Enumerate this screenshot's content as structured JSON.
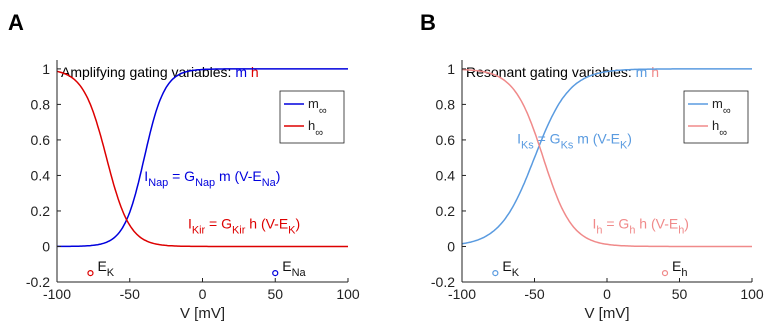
{
  "chart_data": [
    {
      "type": "line",
      "panel_label": "A",
      "title_prefix": "Amplifying gating variables:",
      "title_m": "m",
      "title_h": "h",
      "xlabel": "V  [mV]",
      "xlim": [
        -100,
        100
      ],
      "ylim": [
        -0.2,
        1.05
      ],
      "xticks": [
        -100,
        -50,
        0,
        50,
        100
      ],
      "xtick_labels": [
        "-100",
        "-50",
        "0",
        "50",
        "100"
      ],
      "yticks": [
        -0.2,
        0,
        0.2,
        0.4,
        0.6,
        0.8,
        1
      ],
      "ytick_labels": [
        "-0.2",
        "0",
        "0.2",
        "0.4",
        "0.6",
        "0.8",
        "1"
      ],
      "legend": {
        "location": "top-right",
        "entries": [
          {
            "base": "m",
            "sub": "∞",
            "color": "#0000dd"
          },
          {
            "base": "h",
            "sub": "∞",
            "color": "#dd0000"
          }
        ]
      },
      "series": [
        {
          "key": "m",
          "color": "#0000dd",
          "v_half": -40,
          "slope": 7,
          "kind": "activation"
        },
        {
          "key": "h",
          "color": "#dd0000",
          "v_half": -66,
          "slope": 8,
          "kind": "inactivation"
        }
      ],
      "annotations": [
        {
          "parts": [
            "I",
            "Nap",
            " = G",
            "Nap",
            " m (V-E",
            "Na",
            ")"
          ],
          "color": "#0000dd",
          "x": -40,
          "y": 0.37
        },
        {
          "parts": [
            "I",
            "Kir",
            " = G",
            "Kir",
            " h (V-E",
            "K",
            ")"
          ],
          "color": "#dd0000",
          "x": -10,
          "y": 0.1
        }
      ],
      "markers": [
        {
          "name": "E",
          "sub": "K",
          "x": -77,
          "y": -0.15,
          "color": "#dd0000"
        },
        {
          "name": "E",
          "sub": "Na",
          "x": 50,
          "y": -0.15,
          "color": "#0000dd"
        }
      ]
    },
    {
      "type": "line",
      "panel_label": "B",
      "title_prefix": "Resonant gating variables:",
      "title_m": "m",
      "title_h": "h",
      "xlabel": "V  [mV]",
      "xlim": [
        -100,
        100
      ],
      "ylim": [
        -0.2,
        1.05
      ],
      "xticks": [
        -100,
        -50,
        0,
        50,
        100
      ],
      "xtick_labels": [
        "-100",
        "-50",
        "0",
        "50",
        "100"
      ],
      "yticks": [
        -0.2,
        0,
        0.2,
        0.4,
        0.6,
        0.8,
        1
      ],
      "ytick_labels": [
        "-0.2",
        "0",
        "0.2",
        "0.4",
        "0.6",
        "0.8",
        "1"
      ],
      "legend": {
        "location": "top-right",
        "entries": [
          {
            "base": "m",
            "sub": "∞",
            "color": "#5a9be0"
          },
          {
            "base": "h",
            "sub": "∞",
            "color": "#f08a8a"
          }
        ]
      },
      "series": [
        {
          "key": "m",
          "color": "#5a9be0",
          "v_half": -50,
          "slope": 12,
          "kind": "activation"
        },
        {
          "key": "h",
          "color": "#f08a8a",
          "v_half": -44,
          "slope": 10,
          "kind": "inactivation"
        }
      ],
      "annotations": [
        {
          "parts": [
            "I",
            "Ks",
            " = G",
            "Ks",
            " m (V-E",
            "K",
            ")"
          ],
          "color": "#5a9be0",
          "x": -62,
          "y": 0.58
        },
        {
          "parts": [
            "I",
            "h",
            " = G",
            "h",
            " h (V-E",
            "h",
            ")"
          ],
          "color": "#f08a8a",
          "x": -10,
          "y": 0.1
        }
      ],
      "markers": [
        {
          "name": "E",
          "sub": "K",
          "x": -77,
          "y": -0.15,
          "color": "#5a9be0"
        },
        {
          "name": "E",
          "sub": "h",
          "x": 40,
          "y": -0.15,
          "color": "#f08a8a"
        }
      ]
    }
  ]
}
